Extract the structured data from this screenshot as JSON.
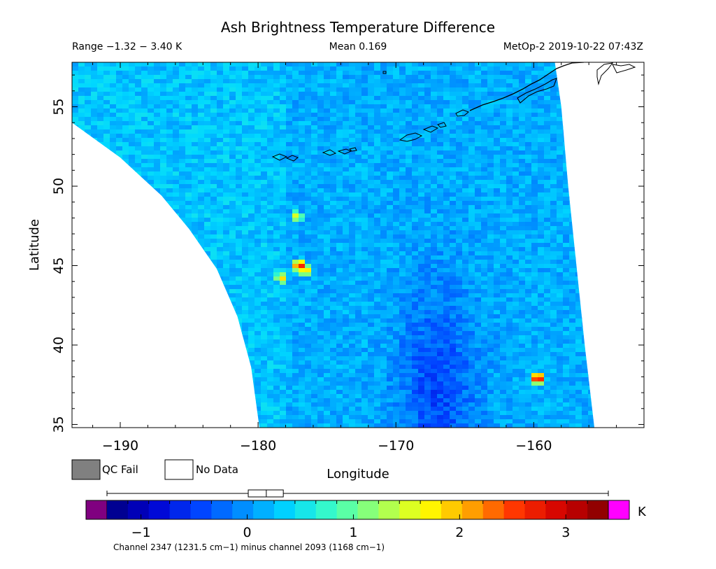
{
  "chart_data": {
    "type": "heatmap",
    "title": "Ash Brightness Temperature Difference",
    "range_text": "Range −1.32 − 3.40 K",
    "mean_text": "Mean 0.169",
    "platform_text": "MetOp-2 2019-10-22 07:43Z",
    "xlabel": "Longitude",
    "ylabel": "Latitude",
    "xlim": [
      -193.5,
      -152
    ],
    "ylim": [
      34.8,
      57.8
    ],
    "x_ticks": [
      -190,
      -180,
      -170,
      -160
    ],
    "x_tick_labels": [
      "−190",
      "−180",
      "−170",
      "−160"
    ],
    "y_ticks": [
      35,
      40,
      45,
      50,
      55
    ],
    "y_tick_labels": [
      "35",
      "40",
      "45",
      "50",
      "55"
    ],
    "swath_left_edge": [
      [
        -193.5,
        54.0
      ],
      [
        -190,
        51.8
      ],
      [
        -187,
        49.4
      ],
      [
        -185,
        47.3
      ],
      [
        -183,
        44.8
      ],
      [
        -181.5,
        41.8
      ],
      [
        -180.5,
        38.6
      ],
      [
        -179.9,
        34.8
      ]
    ],
    "swath_right_edge": [
      [
        -158.5,
        58.0
      ],
      [
        -158.0,
        55.0
      ],
      [
        -157.5,
        50.0
      ],
      [
        -156.9,
        45.0
      ],
      [
        -156.3,
        40.0
      ],
      [
        -155.6,
        34.8
      ]
    ],
    "background_value": 0.15,
    "features": [
      {
        "name": "ash-plume",
        "lon": -177.0,
        "lat": 45.0,
        "value": 3.0
      },
      {
        "name": "ash-plume-edge",
        "lon": -176.6,
        "lat": 44.7,
        "value": 2.2
      },
      {
        "name": "ash-plume-tail",
        "lon": -178.3,
        "lat": 44.2,
        "value": 1.9
      },
      {
        "name": "ash-plume-north",
        "lon": -177.2,
        "lat": 48.1,
        "value": 1.6
      },
      {
        "name": "warm-pixel",
        "lon": -159.7,
        "lat": 37.9,
        "value": 3.3
      },
      {
        "name": "low-btd-band",
        "lon": -167.0,
        "lat": 37.0,
        "value": -0.8
      }
    ],
    "colorbar": {
      "min": -1.32,
      "max": 3.4,
      "ticks": [
        -1,
        0,
        1,
        2,
        3
      ],
      "tick_labels": [
        "−1",
        "0",
        "1",
        "2",
        "3"
      ],
      "unit": "K",
      "underflow_color": "#800080",
      "overflow_color": "#ff00ff",
      "colors": [
        "#000080",
        "#0000d0",
        "#0040ff",
        "#0090ff",
        "#00d8ff",
        "#40ffc0",
        "#a0ff60",
        "#ffff00",
        "#ffa000",
        "#ff3000",
        "#d00000",
        "#800000"
      ],
      "boxplot": {
        "whisker_low": -1.32,
        "q1": 0.01,
        "median": 0.18,
        "q3": 0.34,
        "whisker_high": 3.4
      }
    },
    "legend": [
      {
        "label": "QC Fail",
        "color": "#808080"
      },
      {
        "label": "No Data",
        "color": "#ffffff"
      }
    ],
    "footer": "Channel 2347 (1231.5 cm−1) minus channel 2093 (1168 cm−1)"
  }
}
